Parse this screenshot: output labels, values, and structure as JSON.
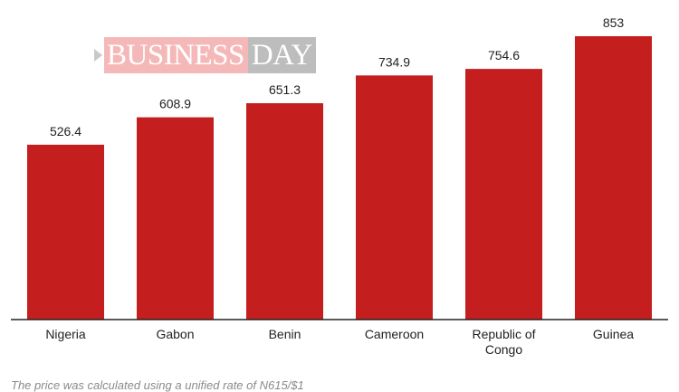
{
  "header": {
    "title": ""
  },
  "logo": {
    "part1": "BUSINESS",
    "part2": "DAY"
  },
  "footnote": "The price was calculated using a unified rate of N615/$1",
  "colors": {
    "bar": "#c41e1e",
    "axis": "#222222"
  },
  "chart_data": {
    "type": "bar",
    "categories": [
      [
        "Nigeria"
      ],
      [
        "Gabon"
      ],
      [
        "Benin"
      ],
      [
        "Cameroon"
      ],
      [
        "Republic of",
        "Congo"
      ],
      [
        "Guinea"
      ]
    ],
    "values": [
      526.4,
      608.9,
      651.3,
      734.9,
      754.6,
      853
    ],
    "value_labels": [
      "526.4",
      "608.9",
      "651.3",
      "734.9",
      "754.6",
      "853"
    ],
    "title": "",
    "xlabel": "",
    "ylabel": "",
    "ylim": [
      0,
      853
    ],
    "grid": false,
    "legend": "none"
  }
}
